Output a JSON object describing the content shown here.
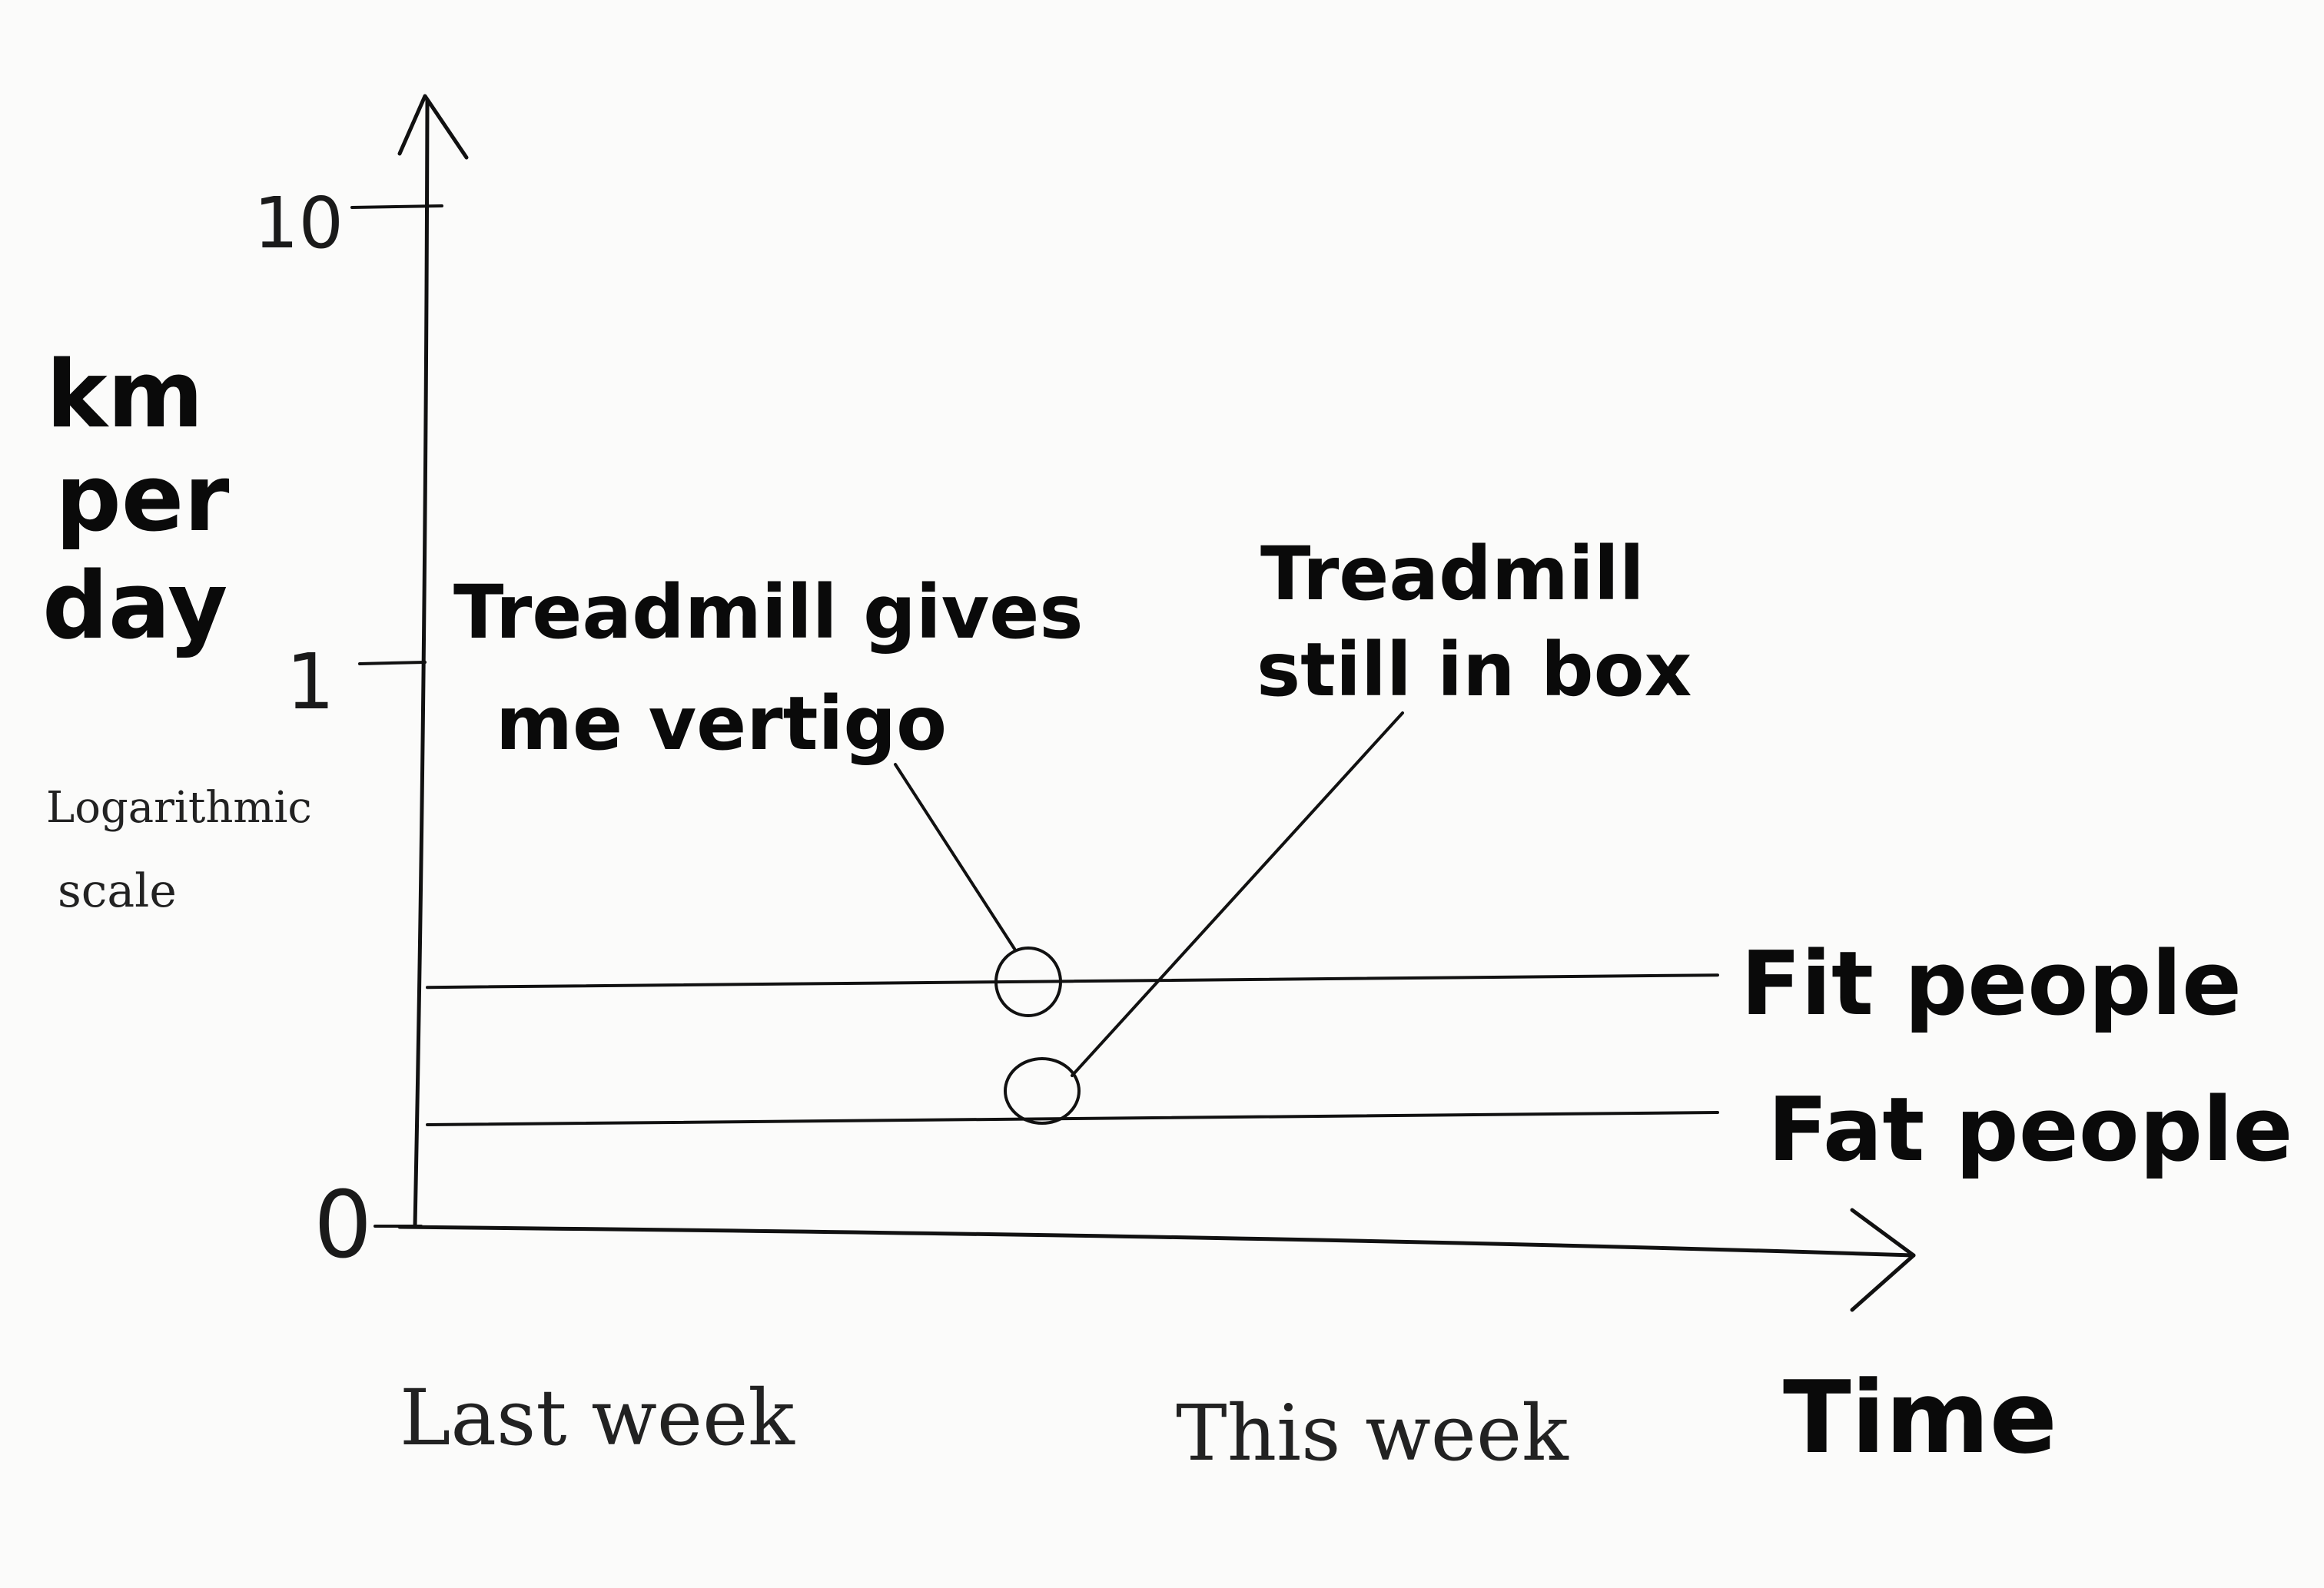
{
  "chart_data": {
    "type": "line",
    "x": [
      "Last week",
      "This week"
    ],
    "xlabel": "Time",
    "ylabel": [
      "km",
      "per",
      "day"
    ],
    "yscale": "log",
    "yscale_note": [
      "Logarithmic",
      "scale"
    ],
    "yticks": [
      "0",
      "1",
      "10"
    ],
    "grid": false,
    "legend": "inline-right",
    "series": [
      {
        "name": "Fit people",
        "values": [
          0.2,
          0.2
        ]
      },
      {
        "name": "Fat people",
        "values": [
          0.1,
          0.1
        ]
      }
    ],
    "annotations": [
      {
        "lines": [
          "Treadmill gives",
          "me vertigo"
        ],
        "series": "Fit people"
      },
      {
        "lines": [
          "Treadmill",
          "still in box"
        ],
        "series": "Fat people"
      }
    ]
  }
}
